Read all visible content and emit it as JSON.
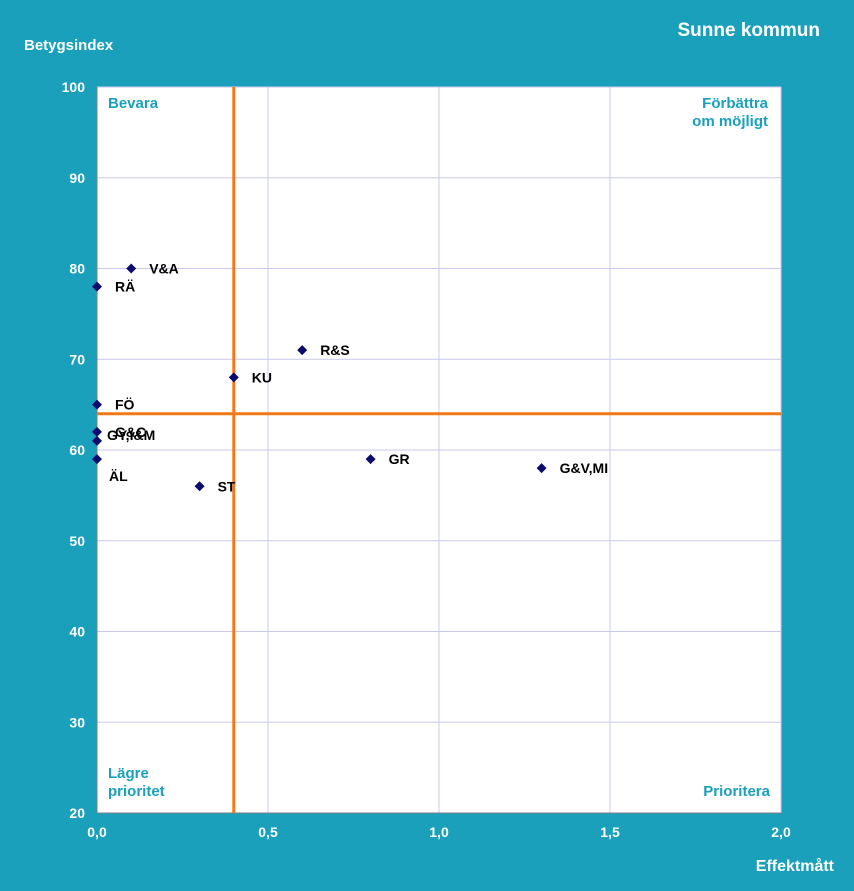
{
  "chart_data": {
    "type": "scatter",
    "title": "Sunne kommun",
    "xlabel": "Effektmått",
    "ylabel": "Betygsindex",
    "xlim": [
      0,
      2
    ],
    "ylim": [
      20,
      100
    ],
    "x_ticks": [
      0,
      0.5,
      1.0,
      1.5,
      2.0
    ],
    "x_tick_labels": [
      "0,0",
      "0,5",
      "1,0",
      "1,5",
      "2,0"
    ],
    "y_ticks": [
      20,
      30,
      40,
      50,
      60,
      70,
      80,
      90,
      100
    ],
    "y_tick_labels": [
      "20",
      "30",
      "40",
      "50",
      "60",
      "70",
      "80",
      "90",
      "100"
    ],
    "grid": true,
    "points": [
      {
        "label": "V&A",
        "x": 0.1,
        "y": 80
      },
      {
        "label": "RÄ",
        "x": 0.0,
        "y": 78
      },
      {
        "label": "R&S",
        "x": 0.6,
        "y": 71
      },
      {
        "label": "KU",
        "x": 0.4,
        "y": 68
      },
      {
        "label": "FÖ",
        "x": 0.0,
        "y": 65
      },
      {
        "label": "G&C",
        "x": 0.0,
        "y": 62
      },
      {
        "label": "GY,I&M",
        "x": 0.0,
        "y": 61
      },
      {
        "label": "ÄL",
        "x": 0.0,
        "y": 59
      },
      {
        "label": "GR",
        "x": 0.8,
        "y": 59
      },
      {
        "label": "G&V,MI",
        "x": 1.3,
        "y": 58
      },
      {
        "label": "ST",
        "x": 0.3,
        "y": 56
      }
    ],
    "reference_lines": {
      "x": 0.4,
      "y": 64
    },
    "quadrant_labels": {
      "top_left": "Bevara",
      "top_right": [
        "Förbättra",
        "om möjligt"
      ],
      "bottom_left": [
        "Lägre",
        "prioritet"
      ],
      "bottom_right": "Prioritera"
    },
    "colors": {
      "background": "#1aa0bb",
      "plot_area": "#ffffff",
      "grid": "#c8c8ec",
      "reference_line": "#f07a1a",
      "marker": "#0b0b6e",
      "quadrant_text": "#1aa0bb"
    }
  }
}
